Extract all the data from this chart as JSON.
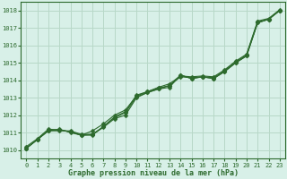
{
  "title": "Graphe pression niveau de la mer (hPa)",
  "xlim": [
    -0.5,
    23.5
  ],
  "ylim": [
    1009.5,
    1018.5
  ],
  "yticks": [
    1010,
    1011,
    1012,
    1013,
    1014,
    1015,
    1016,
    1017,
    1018
  ],
  "xticks": [
    0,
    1,
    2,
    3,
    4,
    5,
    6,
    7,
    8,
    9,
    10,
    11,
    12,
    13,
    14,
    15,
    16,
    17,
    18,
    19,
    20,
    21,
    22,
    23
  ],
  "background_color": "#d8f0e8",
  "grid_color": "#b8d8c8",
  "line_color": "#2d6a2d",
  "series": [
    [
      1010.1,
      1010.6,
      1011.1,
      1011.1,
      1011.1,
      1010.9,
      1010.9,
      1011.3,
      1011.8,
      1012.0,
      1013.0,
      1013.3,
      1013.5,
      1013.6,
      1014.3,
      1014.1,
      1014.2,
      1014.1,
      1014.5,
      1015.0,
      1015.4,
      1017.3,
      1017.5,
      1018.0
    ],
    [
      1010.1,
      1010.6,
      1011.1,
      1011.2,
      1011.0,
      1010.85,
      1011.1,
      1011.5,
      1012.0,
      1012.3,
      1013.1,
      1013.35,
      1013.6,
      1013.8,
      1014.25,
      1014.2,
      1014.25,
      1014.2,
      1014.6,
      1015.1,
      1015.5,
      1017.4,
      1017.55,
      1018.05
    ],
    [
      1010.1,
      1010.6,
      1011.15,
      1011.15,
      1011.05,
      1010.85,
      1010.85,
      1011.35,
      1011.85,
      1012.15,
      1013.05,
      1013.3,
      1013.5,
      1013.7,
      1014.2,
      1014.15,
      1014.2,
      1014.15,
      1014.55,
      1015.05,
      1015.45,
      1017.35,
      1017.5,
      1018.0
    ],
    [
      1010.2,
      1010.65,
      1011.2,
      1011.15,
      1011.05,
      1010.85,
      1010.9,
      1011.35,
      1011.9,
      1012.2,
      1013.15,
      1013.35,
      1013.55,
      1013.7,
      1014.3,
      1014.1,
      1014.2,
      1014.1,
      1014.5,
      1015.0,
      1015.4,
      1017.3,
      1017.5,
      1018.0
    ]
  ],
  "marker": "D",
  "markersize": 2.5,
  "linewidth": 0.8,
  "tick_fontsize": 5.0,
  "xlabel_fontsize": 6.0
}
